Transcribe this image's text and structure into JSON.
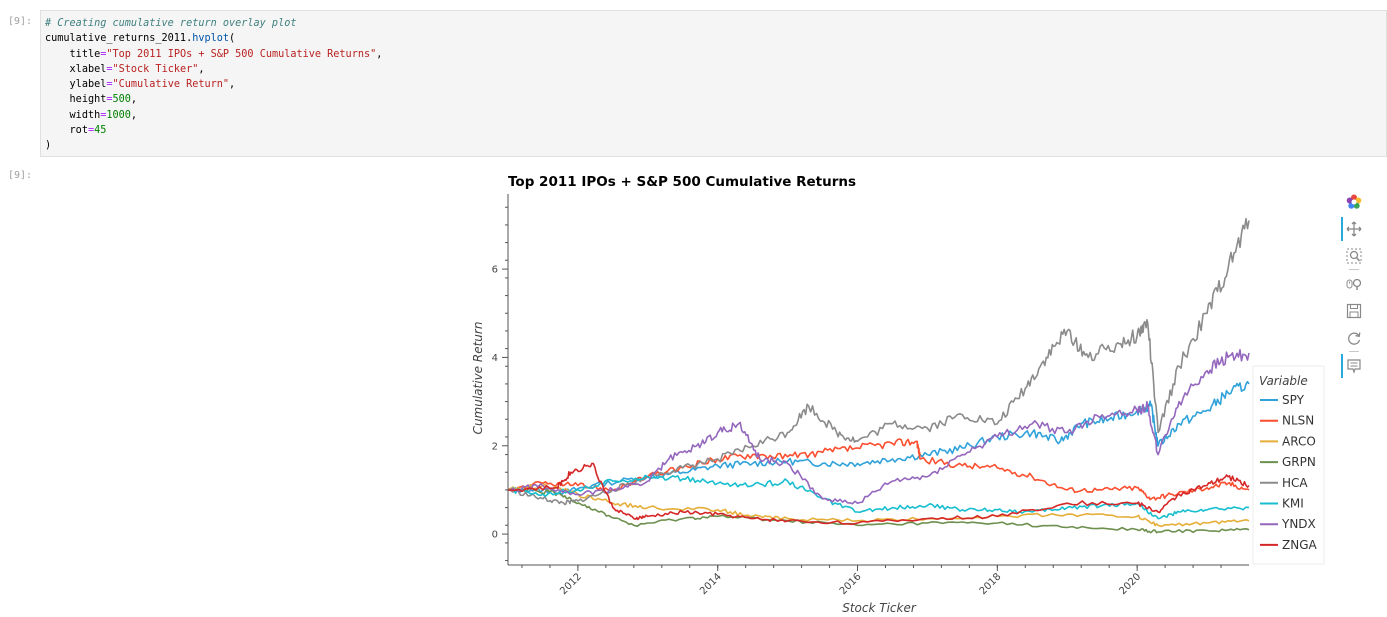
{
  "notebook": {
    "input_prompt": "[9]:",
    "output_prompt": "[9]:",
    "code": {
      "comment": "# Creating cumulative return overlay plot",
      "var": "cumulative_returns_2011",
      "method": "hvplot",
      "title_kw": "title",
      "title_val": "\"Top 2011 IPOs + S&P 500 Cumulative Returns\"",
      "xlabel_kw": "xlabel",
      "xlabel_val": "\"Stock Ticker\"",
      "ylabel_kw": "ylabel",
      "ylabel_val": "\"Cumulative Return\"",
      "height_kw": "height",
      "height_val": "500",
      "width_kw": "width",
      "width_val": "1000",
      "rot_kw": "rot",
      "rot_val": "45"
    }
  },
  "toolbar": {
    "tools": [
      "bokeh-logo-icon",
      "pan-icon",
      "box-zoom-icon",
      "wheel-zoom-icon",
      "save-icon",
      "reset-icon",
      "hover-icon"
    ]
  },
  "chart_data": {
    "type": "line",
    "title": "Top 2011 IPOs + S&P 500 Cumulative Returns",
    "xlabel": "Stock Ticker",
    "ylabel": "Cumulative Return",
    "xlim": [
      2011.0,
      2021.6
    ],
    "ylim": [
      -0.7,
      7.7
    ],
    "x_ticks": [
      "2012",
      "2014",
      "2016",
      "2018",
      "2020"
    ],
    "x_tick_values": [
      2012,
      2014,
      2016,
      2018,
      2020
    ],
    "y_ticks": [
      "0",
      "2",
      "4",
      "6"
    ],
    "y_tick_values": [
      0,
      2,
      4,
      6
    ],
    "legend_title": "Variable",
    "legend_position": "right",
    "series": [
      {
        "name": "SPY",
        "color": "#30a2da",
        "x": [
          2011.0,
          2011.5,
          2011.8,
          2012.2,
          2013.0,
          2013.5,
          2014.0,
          2014.5,
          2015.0,
          2015.5,
          2016.0,
          2016.5,
          2017.0,
          2017.5,
          2018.0,
          2018.5,
          2018.9,
          2019.2,
          2019.6,
          2020.0,
          2020.2,
          2020.3,
          2020.6,
          2021.0,
          2021.3,
          2021.6
        ],
        "y": [
          1.0,
          1.0,
          0.95,
          1.1,
          1.3,
          1.4,
          1.55,
          1.6,
          1.65,
          1.6,
          1.6,
          1.7,
          1.8,
          1.95,
          2.2,
          2.3,
          2.1,
          2.5,
          2.6,
          2.8,
          2.9,
          2.0,
          2.5,
          2.8,
          3.2,
          3.4
        ]
      },
      {
        "name": "NLSN",
        "color": "#fc4f30",
        "x": [
          2011.0,
          2011.5,
          2012.0,
          2012.5,
          2013.0,
          2013.5,
          2014.0,
          2014.5,
          2015.0,
          2015.5,
          2016.0,
          2016.5,
          2016.85,
          2016.9,
          2017.5,
          2018.0,
          2018.5,
          2019.0,
          2019.5,
          2020.0,
          2020.2,
          2020.5,
          2021.0,
          2021.3,
          2021.6
        ],
        "y": [
          1.0,
          1.15,
          1.1,
          1.0,
          1.3,
          1.5,
          1.7,
          1.8,
          1.75,
          1.85,
          1.95,
          2.05,
          2.1,
          1.7,
          1.55,
          1.5,
          1.3,
          1.0,
          1.0,
          1.05,
          0.8,
          0.9,
          1.05,
          1.15,
          1.0
        ]
      },
      {
        "name": "ARCO",
        "color": "#e5ae38",
        "x": [
          2011.0,
          2011.5,
          2012.0,
          2012.5,
          2013.0,
          2014.0,
          2014.5,
          2015.0,
          2016.0,
          2017.0,
          2018.0,
          2019.0,
          2020.0,
          2020.3,
          2021.0,
          2021.6
        ],
        "y": [
          1.0,
          1.1,
          0.9,
          0.7,
          0.6,
          0.55,
          0.4,
          0.35,
          0.3,
          0.35,
          0.4,
          0.45,
          0.4,
          0.2,
          0.25,
          0.3
        ]
      },
      {
        "name": "GRPN",
        "color": "#6d904f",
        "x": [
          2011.0,
          2011.6,
          2011.9,
          2012.3,
          2012.8,
          2013.5,
          2014.0,
          2015.0,
          2016.0,
          2017.0,
          2018.0,
          2019.0,
          2020.0,
          2020.3,
          2021.0,
          2021.6
        ],
        "y": [
          1.0,
          0.95,
          0.8,
          0.5,
          0.2,
          0.35,
          0.4,
          0.3,
          0.2,
          0.25,
          0.25,
          0.15,
          0.1,
          0.05,
          0.08,
          0.1
        ]
      },
      {
        "name": "HCA",
        "color": "#8b8b8b",
        "x": [
          2011.0,
          2011.5,
          2011.8,
          2012.0,
          2012.5,
          2013.0,
          2013.5,
          2014.0,
          2014.5,
          2015.0,
          2015.3,
          2015.7,
          2016.0,
          2016.5,
          2017.0,
          2017.5,
          2018.0,
          2018.4,
          2018.7,
          2019.0,
          2019.3,
          2019.7,
          2020.0,
          2020.15,
          2020.3,
          2020.6,
          2021.0,
          2021.3,
          2021.6
        ],
        "y": [
          1.0,
          0.8,
          0.7,
          0.75,
          1.0,
          1.3,
          1.5,
          1.7,
          2.0,
          2.3,
          2.9,
          2.3,
          2.1,
          2.5,
          2.4,
          2.7,
          2.5,
          3.3,
          4.0,
          4.6,
          4.0,
          4.3,
          4.5,
          4.8,
          2.3,
          3.8,
          5.0,
          6.0,
          7.1
        ]
      },
      {
        "name": "KMI",
        "color": "#17becf",
        "x": [
          2011.0,
          2011.5,
          2012.0,
          2012.5,
          2013.0,
          2013.5,
          2014.0,
          2014.5,
          2015.0,
          2015.5,
          2016.0,
          2016.5,
          2017.0,
          2017.5,
          2018.0,
          2018.5,
          2019.0,
          2019.5,
          2020.0,
          2020.3,
          2020.6,
          2021.0,
          2021.6
        ],
        "y": [
          1.0,
          0.9,
          1.0,
          1.2,
          1.3,
          1.25,
          1.15,
          1.1,
          1.2,
          0.8,
          0.5,
          0.6,
          0.65,
          0.55,
          0.55,
          0.5,
          0.6,
          0.65,
          0.7,
          0.35,
          0.5,
          0.55,
          0.6
        ]
      },
      {
        "name": "YNDX",
        "color": "#9467bd",
        "x": [
          2011.0,
          2011.5,
          2012.0,
          2012.5,
          2013.0,
          2013.3,
          2013.7,
          2014.0,
          2014.3,
          2014.6,
          2015.0,
          2015.5,
          2016.0,
          2016.5,
          2017.0,
          2017.5,
          2018.0,
          2018.5,
          2019.0,
          2019.5,
          2020.0,
          2020.15,
          2020.3,
          2020.6,
          2021.0,
          2021.3,
          2021.6
        ],
        "y": [
          1.0,
          1.1,
          0.9,
          1.0,
          1.2,
          1.7,
          2.0,
          2.3,
          2.5,
          1.7,
          1.6,
          0.8,
          0.7,
          1.2,
          1.3,
          1.8,
          2.2,
          2.5,
          2.3,
          2.7,
          2.8,
          2.9,
          1.8,
          3.0,
          3.7,
          4.0,
          4.1
        ]
      },
      {
        "name": "ZNGA",
        "color": "#d62728",
        "x": [
          2011.0,
          2011.7,
          2011.9,
          2012.2,
          2012.5,
          2012.8,
          2013.0,
          2013.5,
          2014.0,
          2014.5,
          2015.0,
          2016.0,
          2017.0,
          2018.0,
          2019.0,
          2020.0,
          2020.3,
          2020.6,
          2021.0,
          2021.3,
          2021.6
        ],
        "y": [
          1.0,
          1.05,
          1.4,
          1.6,
          0.6,
          0.35,
          0.4,
          0.5,
          0.45,
          0.35,
          0.3,
          0.25,
          0.35,
          0.4,
          0.7,
          0.7,
          0.5,
          0.9,
          1.1,
          1.3,
          1.1
        ]
      }
    ]
  }
}
